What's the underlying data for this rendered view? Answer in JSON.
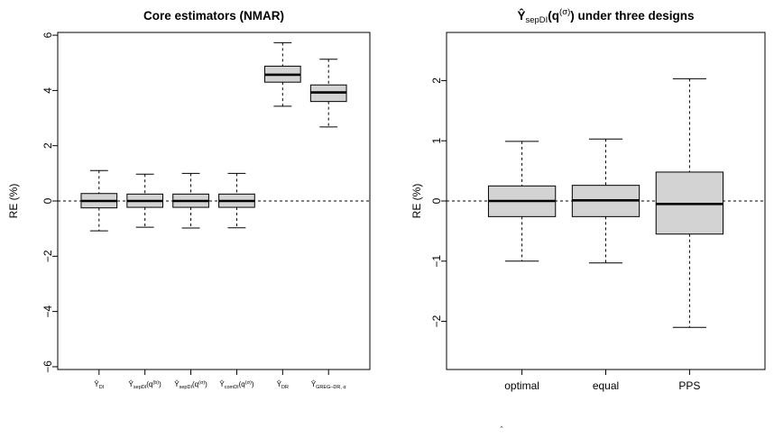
{
  "chart_data": [
    {
      "type": "boxplot",
      "title": "Core estimators (NMAR)",
      "ylabel": "RE (%)",
      "ylim": [
        -6.1,
        6.1
      ],
      "yticks": [
        -6,
        -4,
        -2,
        0,
        2,
        4,
        6
      ],
      "reference_line": 0,
      "categories": [
        {
          "base": "Y",
          "sub": "DI",
          "sup": ""
        },
        {
          "base": "Y",
          "sub": "sepDI",
          "sup": "(b)"
        },
        {
          "base": "Y",
          "sub": "sepDI",
          "sup": "(σ)"
        },
        {
          "base": "Y",
          "sub": "comDI",
          "sup": "(σ)"
        },
        {
          "base": "Y",
          "sub": "DR",
          "sup": ""
        },
        {
          "base": "Y",
          "sub": "GREG–DR, α",
          "sup": ""
        }
      ],
      "category_template": "q",
      "boxes": [
        {
          "min": -1.08,
          "q1": -0.25,
          "median": 0.0,
          "q3": 0.27,
          "max": 1.1
        },
        {
          "min": -0.95,
          "q1": -0.23,
          "median": 0.0,
          "q3": 0.25,
          "max": 0.97
        },
        {
          "min": -0.98,
          "q1": -0.23,
          "median": 0.0,
          "q3": 0.25,
          "max": 1.0
        },
        {
          "min": -0.97,
          "q1": -0.23,
          "median": 0.0,
          "q3": 0.25,
          "max": 1.0
        },
        {
          "min": 3.43,
          "q1": 4.3,
          "median": 4.57,
          "q3": 4.88,
          "max": 5.73
        },
        {
          "min": 2.68,
          "q1": 3.6,
          "median": 3.93,
          "q3": 4.2,
          "max": 5.13
        }
      ]
    },
    {
      "type": "boxplot",
      "title_parts": {
        "base": "Y",
        "sub": "sepDI",
        "sup": "(σ)",
        "rest": " under three designs"
      },
      "ylabel": "RE (%)",
      "ylim": [
        -2.8,
        2.8
      ],
      "yticks": [
        -2,
        -1,
        0,
        1,
        2
      ],
      "reference_line": 0,
      "categories": [
        "optimal",
        "equal",
        "PPS"
      ],
      "boxes": [
        {
          "min": -1.0,
          "q1": -0.26,
          "median": 0.0,
          "q3": 0.25,
          "max": 0.99
        },
        {
          "min": -1.03,
          "q1": -0.26,
          "median": 0.01,
          "q3": 0.26,
          "max": 1.03
        },
        {
          "min": -2.1,
          "q1": -0.55,
          "median": -0.05,
          "q3": 0.48,
          "max": 2.03
        }
      ]
    }
  ],
  "colors": {
    "box_fill": "#d3d3d3",
    "stroke": "#000000"
  }
}
